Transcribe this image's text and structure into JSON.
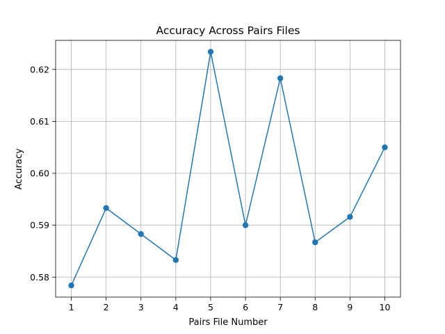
{
  "chart_data": {
    "type": "line",
    "title": "Accuracy Across Pairs Files",
    "xlabel": "Pairs File Number",
    "ylabel": "Accuracy",
    "x": [
      1,
      2,
      3,
      4,
      5,
      6,
      7,
      8,
      9,
      10
    ],
    "series": [
      {
        "values": [
          0.5784,
          0.5933,
          0.5883,
          0.5833,
          0.6234,
          0.59,
          0.6183,
          0.5867,
          0.5916,
          0.605
        ],
        "color": "#1f77b4",
        "marker": "circle"
      }
    ],
    "xticks": [
      "1",
      "2",
      "3",
      "4",
      "5",
      "6",
      "7",
      "8",
      "9",
      "10"
    ],
    "yticks": [
      "0.58",
      "0.59",
      "0.60",
      "0.61",
      "0.62"
    ],
    "ytick_values": [
      0.58,
      0.59,
      0.6,
      0.61,
      0.62
    ],
    "xlim": [
      0.55,
      10.45
    ],
    "ylim": [
      0.57615,
      0.6256
    ],
    "grid": true,
    "legend": "none"
  }
}
